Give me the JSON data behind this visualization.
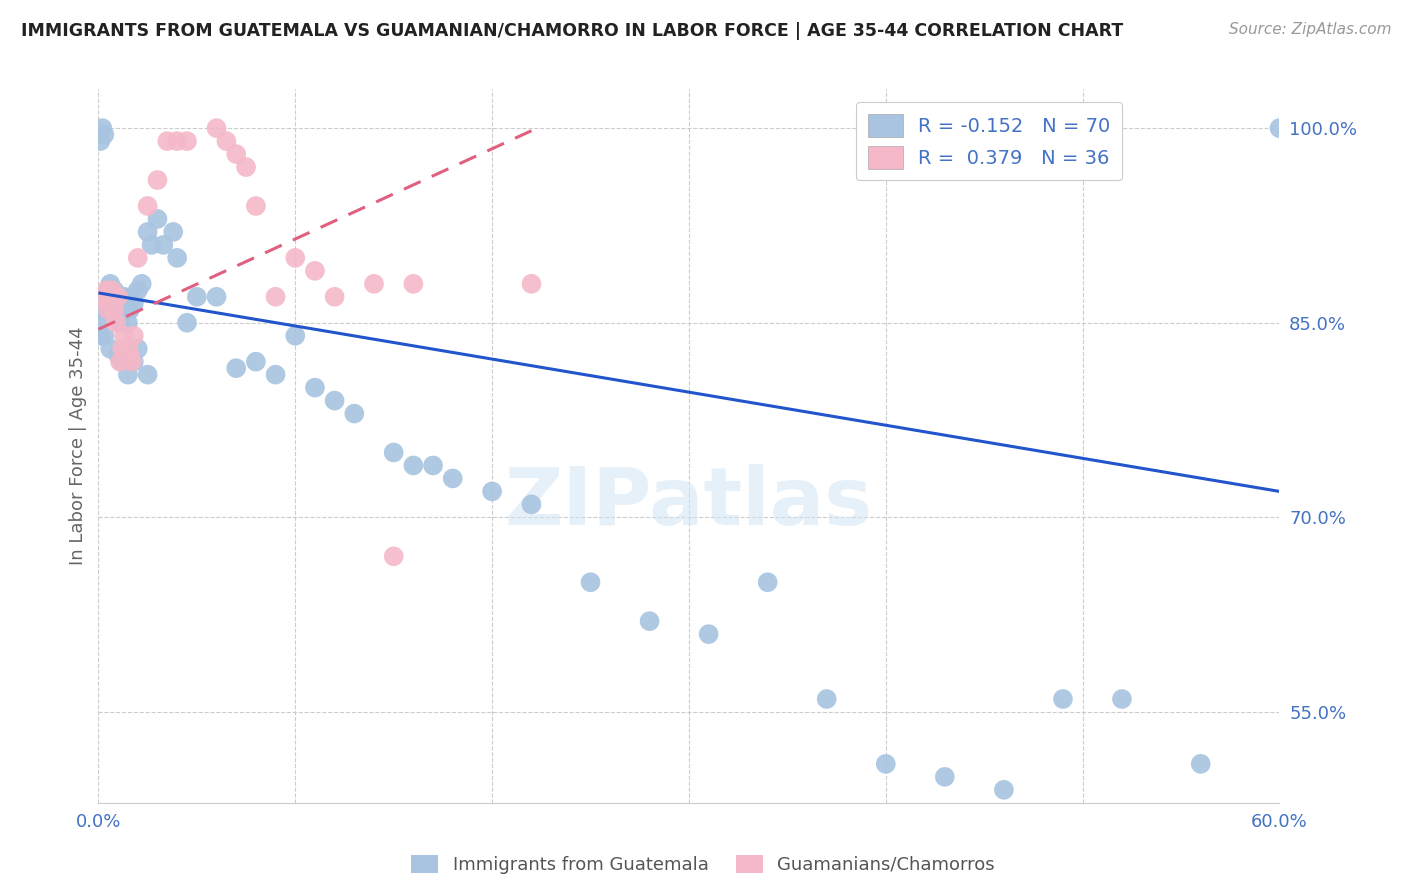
{
  "title": "IMMIGRANTS FROM GUATEMALA VS GUAMANIAN/CHAMORRO IN LABOR FORCE | AGE 35-44 CORRELATION CHART",
  "source_text": "Source: ZipAtlas.com",
  "ylabel": "In Labor Force | Age 35-44",
  "xlim": [
    0.0,
    0.6
  ],
  "ylim": [
    0.48,
    1.03
  ],
  "yticks": [
    0.55,
    0.7,
    0.85,
    1.0
  ],
  "ytick_labels": [
    "55.0%",
    "70.0%",
    "85.0%",
    "100.0%"
  ],
  "xticks": [
    0.0,
    0.1,
    0.2,
    0.3,
    0.4,
    0.5,
    0.6
  ],
  "xtick_labels": [
    "0.0%",
    "",
    "",
    "",
    "",
    "",
    "60.0%"
  ],
  "title_color": "#222222",
  "axis_color": "#4472c4",
  "grid_color": "#cccccc",
  "blue_dot_color": "#a8c4e0",
  "pink_dot_color": "#f4b8c8",
  "blue_line_color": "#2255cc",
  "pink_line_color": "#e06080",
  "legend_R1": "-0.152",
  "legend_N1": "70",
  "legend_R2": "0.379",
  "legend_N2": "36",
  "blue_scatter_x": [
    0.001,
    0.001,
    0.001,
    0.002,
    0.002,
    0.002,
    0.003,
    0.003,
    0.004,
    0.004,
    0.005,
    0.005,
    0.006,
    0.007,
    0.008,
    0.008,
    0.009,
    0.01,
    0.011,
    0.012,
    0.013,
    0.015,
    0.016,
    0.017,
    0.018,
    0.02,
    0.022,
    0.025,
    0.027,
    0.03,
    0.033,
    0.038,
    0.04,
    0.045,
    0.05,
    0.06,
    0.07,
    0.08,
    0.09,
    0.1,
    0.11,
    0.12,
    0.13,
    0.15,
    0.16,
    0.17,
    0.18,
    0.2,
    0.22,
    0.25,
    0.28,
    0.31,
    0.34,
    0.37,
    0.4,
    0.43,
    0.46,
    0.49,
    0.52,
    0.56,
    0.001,
    0.003,
    0.006,
    0.01,
    0.012,
    0.015,
    0.018,
    0.02,
    0.025,
    0.6
  ],
  "blue_scatter_y": [
    0.87,
    0.855,
    0.99,
    0.87,
    0.86,
    1.0,
    0.87,
    0.995,
    0.87,
    0.86,
    0.875,
    0.87,
    0.88,
    0.87,
    0.875,
    0.86,
    0.87,
    0.855,
    0.85,
    0.87,
    0.87,
    0.85,
    0.86,
    0.87,
    0.865,
    0.875,
    0.88,
    0.92,
    0.91,
    0.93,
    0.91,
    0.92,
    0.9,
    0.85,
    0.87,
    0.87,
    0.815,
    0.82,
    0.81,
    0.84,
    0.8,
    0.79,
    0.78,
    0.75,
    0.74,
    0.74,
    0.73,
    0.72,
    0.71,
    0.65,
    0.62,
    0.61,
    0.65,
    0.56,
    0.51,
    0.5,
    0.49,
    0.56,
    0.56,
    0.51,
    0.84,
    0.84,
    0.83,
    0.825,
    0.82,
    0.81,
    0.82,
    0.83,
    0.81,
    1.0
  ],
  "pink_scatter_x": [
    0.001,
    0.002,
    0.003,
    0.004,
    0.005,
    0.006,
    0.007,
    0.008,
    0.009,
    0.01,
    0.011,
    0.012,
    0.013,
    0.015,
    0.016,
    0.017,
    0.018,
    0.02,
    0.025,
    0.03,
    0.035,
    0.04,
    0.045,
    0.06,
    0.065,
    0.07,
    0.075,
    0.08,
    0.09,
    0.1,
    0.11,
    0.12,
    0.14,
    0.15,
    0.16,
    0.22
  ],
  "pink_scatter_y": [
    0.87,
    0.87,
    0.87,
    0.875,
    0.86,
    0.865,
    0.875,
    0.86,
    0.85,
    0.87,
    0.82,
    0.83,
    0.84,
    0.83,
    0.825,
    0.82,
    0.84,
    0.9,
    0.94,
    0.96,
    0.99,
    0.99,
    0.99,
    1.0,
    0.99,
    0.98,
    0.97,
    0.94,
    0.87,
    0.9,
    0.89,
    0.87,
    0.88,
    0.67,
    0.88,
    0.88
  ],
  "blue_trend_x": [
    0.0,
    0.6
  ],
  "blue_trend_y": [
    0.873,
    0.72
  ],
  "pink_trend_x": [
    0.0,
    0.22
  ],
  "pink_trend_y": [
    0.845,
    0.998
  ]
}
